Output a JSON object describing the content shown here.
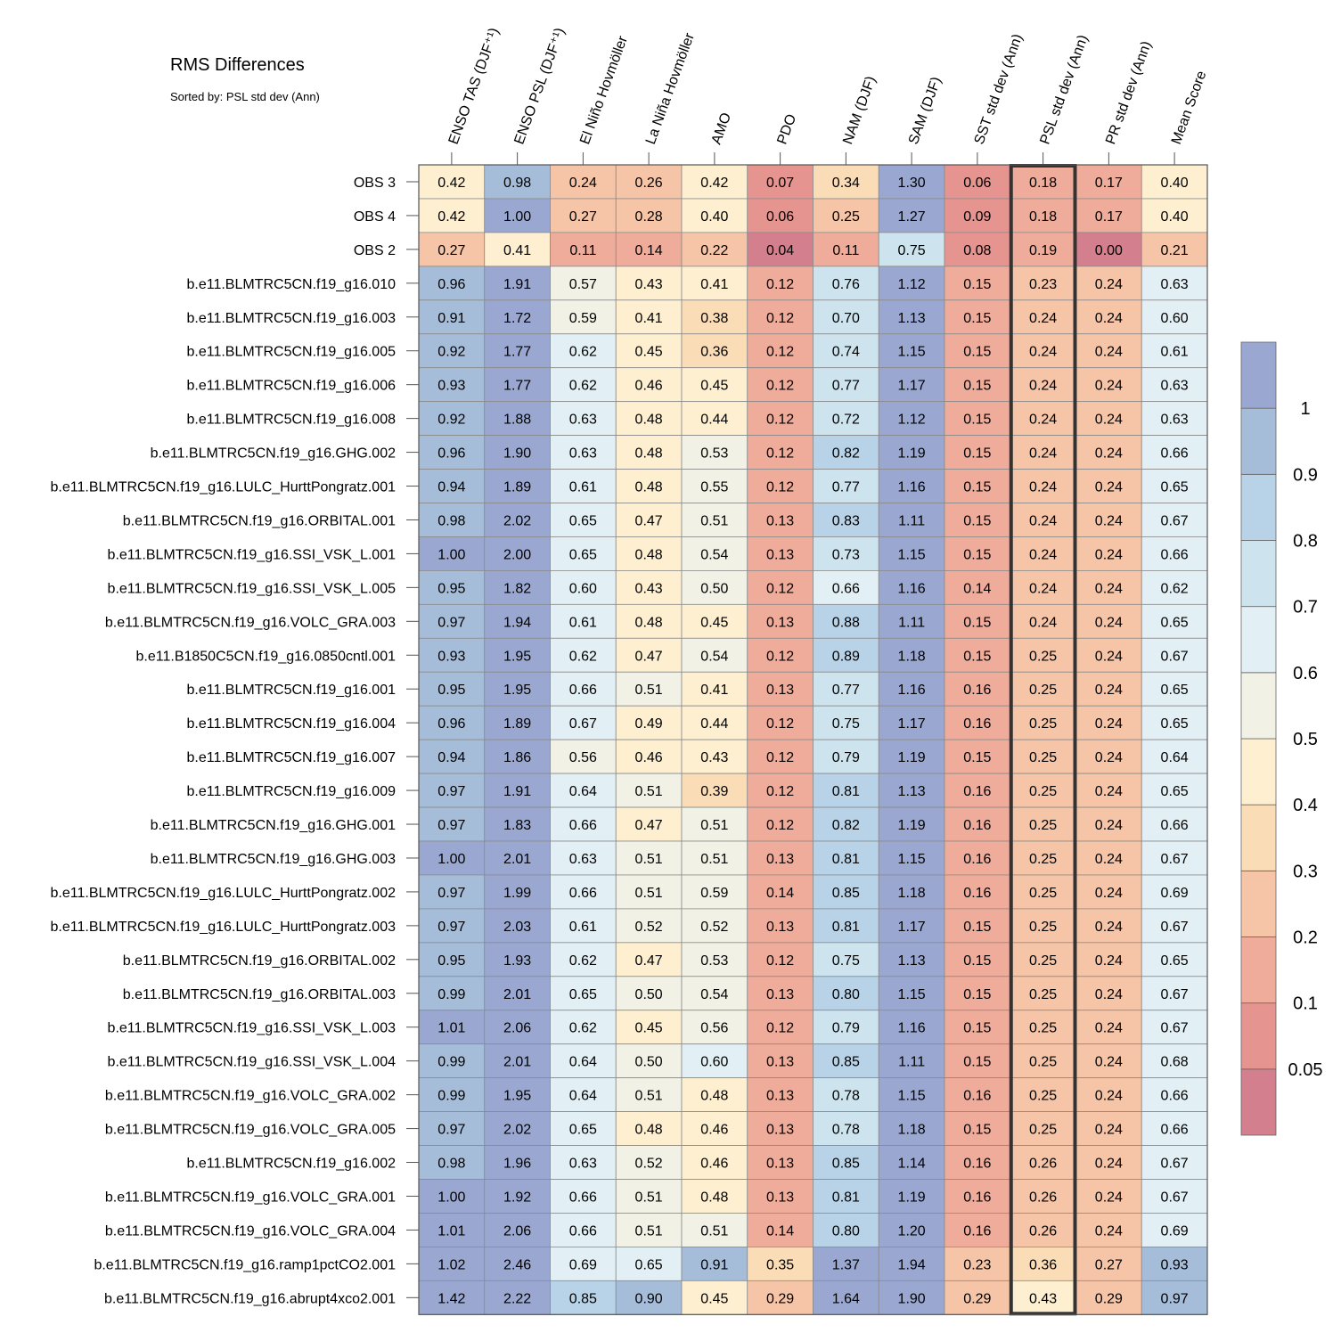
{
  "chart_data": {
    "type": "heatmap",
    "title": "RMS Differences",
    "subtitle": "Sorted by: PSL std dev (Ann)",
    "highlighted_column": "PSL std dev (Ann)",
    "columns": [
      "ENSO TAS (DJF⁺¹)",
      "ENSO PSL (DJF⁺¹)",
      "El Niño Hovmöller",
      "La Niña Hovmöller",
      "AMO",
      "PDO",
      "NAM (DJF)",
      "SAM (DJF)",
      "SST std dev (Ann)",
      "PSL std dev (Ann)",
      "PR std dev (Ann)",
      "Mean Score"
    ],
    "rows": [
      {
        "label": "OBS 3",
        "values": [
          "0.42",
          "0.98",
          "0.24",
          "0.26",
          "0.42",
          "0.07",
          "0.34",
          "1.30",
          "0.06",
          "0.18",
          "0.17",
          "0.40"
        ]
      },
      {
        "label": "OBS 4",
        "values": [
          "0.42",
          "1.00",
          "0.27",
          "0.28",
          "0.40",
          "0.06",
          "0.25",
          "1.27",
          "0.09",
          "0.18",
          "0.17",
          "0.40"
        ]
      },
      {
        "label": "OBS 2",
        "values": [
          "0.27",
          "0.41",
          "0.11",
          "0.14",
          "0.22",
          "0.04",
          "0.11",
          "0.75",
          "0.08",
          "0.19",
          "0.00",
          "0.21"
        ]
      },
      {
        "label": "b.e11.BLMTRC5CN.f19_g16.010",
        "values": [
          "0.96",
          "1.91",
          "0.57",
          "0.43",
          "0.41",
          "0.12",
          "0.76",
          "1.12",
          "0.15",
          "0.23",
          "0.24",
          "0.63"
        ]
      },
      {
        "label": "b.e11.BLMTRC5CN.f19_g16.003",
        "values": [
          "0.91",
          "1.72",
          "0.59",
          "0.41",
          "0.38",
          "0.12",
          "0.70",
          "1.13",
          "0.15",
          "0.24",
          "0.24",
          "0.60"
        ]
      },
      {
        "label": "b.e11.BLMTRC5CN.f19_g16.005",
        "values": [
          "0.92",
          "1.77",
          "0.62",
          "0.45",
          "0.36",
          "0.12",
          "0.74",
          "1.15",
          "0.15",
          "0.24",
          "0.24",
          "0.61"
        ]
      },
      {
        "label": "b.e11.BLMTRC5CN.f19_g16.006",
        "values": [
          "0.93",
          "1.77",
          "0.62",
          "0.46",
          "0.45",
          "0.12",
          "0.77",
          "1.17",
          "0.15",
          "0.24",
          "0.24",
          "0.63"
        ]
      },
      {
        "label": "b.e11.BLMTRC5CN.f19_g16.008",
        "values": [
          "0.92",
          "1.88",
          "0.63",
          "0.48",
          "0.44",
          "0.12",
          "0.72",
          "1.12",
          "0.15",
          "0.24",
          "0.24",
          "0.63"
        ]
      },
      {
        "label": "b.e11.BLMTRC5CN.f19_g16.GHG.002",
        "values": [
          "0.96",
          "1.90",
          "0.63",
          "0.48",
          "0.53",
          "0.12",
          "0.82",
          "1.19",
          "0.15",
          "0.24",
          "0.24",
          "0.66"
        ]
      },
      {
        "label": "b.e11.BLMTRC5CN.f19_g16.LULC_HurttPongratz.001",
        "values": [
          "0.94",
          "1.89",
          "0.61",
          "0.48",
          "0.55",
          "0.12",
          "0.77",
          "1.16",
          "0.15",
          "0.24",
          "0.24",
          "0.65"
        ]
      },
      {
        "label": "b.e11.BLMTRC5CN.f19_g16.ORBITAL.001",
        "values": [
          "0.98",
          "2.02",
          "0.65",
          "0.47",
          "0.51",
          "0.13",
          "0.83",
          "1.11",
          "0.15",
          "0.24",
          "0.24",
          "0.67"
        ]
      },
      {
        "label": "b.e11.BLMTRC5CN.f19_g16.SSI_VSK_L.001",
        "values": [
          "1.00",
          "2.00",
          "0.65",
          "0.48",
          "0.54",
          "0.13",
          "0.73",
          "1.15",
          "0.15",
          "0.24",
          "0.24",
          "0.66"
        ]
      },
      {
        "label": "b.e11.BLMTRC5CN.f19_g16.SSI_VSK_L.005",
        "values": [
          "0.95",
          "1.82",
          "0.60",
          "0.43",
          "0.50",
          "0.12",
          "0.66",
          "1.16",
          "0.14",
          "0.24",
          "0.24",
          "0.62"
        ]
      },
      {
        "label": "b.e11.BLMTRC5CN.f19_g16.VOLC_GRA.003",
        "values": [
          "0.97",
          "1.94",
          "0.61",
          "0.48",
          "0.45",
          "0.13",
          "0.88",
          "1.11",
          "0.15",
          "0.24",
          "0.24",
          "0.65"
        ]
      },
      {
        "label": "b.e11.B1850C5CN.f19_g16.0850cntl.001",
        "values": [
          "0.93",
          "1.95",
          "0.62",
          "0.47",
          "0.54",
          "0.12",
          "0.89",
          "1.18",
          "0.15",
          "0.25",
          "0.24",
          "0.67"
        ]
      },
      {
        "label": "b.e11.BLMTRC5CN.f19_g16.001",
        "values": [
          "0.95",
          "1.95",
          "0.66",
          "0.51",
          "0.41",
          "0.13",
          "0.77",
          "1.16",
          "0.16",
          "0.25",
          "0.24",
          "0.65"
        ]
      },
      {
        "label": "b.e11.BLMTRC5CN.f19_g16.004",
        "values": [
          "0.96",
          "1.89",
          "0.67",
          "0.49",
          "0.44",
          "0.12",
          "0.75",
          "1.17",
          "0.16",
          "0.25",
          "0.24",
          "0.65"
        ]
      },
      {
        "label": "b.e11.BLMTRC5CN.f19_g16.007",
        "values": [
          "0.94",
          "1.86",
          "0.56",
          "0.46",
          "0.43",
          "0.12",
          "0.79",
          "1.19",
          "0.15",
          "0.25",
          "0.24",
          "0.64"
        ]
      },
      {
        "label": "b.e11.BLMTRC5CN.f19_g16.009",
        "values": [
          "0.97",
          "1.91",
          "0.64",
          "0.51",
          "0.39",
          "0.12",
          "0.81",
          "1.13",
          "0.16",
          "0.25",
          "0.24",
          "0.65"
        ]
      },
      {
        "label": "b.e11.BLMTRC5CN.f19_g16.GHG.001",
        "values": [
          "0.97",
          "1.83",
          "0.66",
          "0.47",
          "0.51",
          "0.12",
          "0.82",
          "1.19",
          "0.16",
          "0.25",
          "0.24",
          "0.66"
        ]
      },
      {
        "label": "b.e11.BLMTRC5CN.f19_g16.GHG.003",
        "values": [
          "1.00",
          "2.01",
          "0.63",
          "0.51",
          "0.51",
          "0.13",
          "0.81",
          "1.15",
          "0.16",
          "0.25",
          "0.24",
          "0.67"
        ]
      },
      {
        "label": "b.e11.BLMTRC5CN.f19_g16.LULC_HurttPongratz.002",
        "values": [
          "0.97",
          "1.99",
          "0.66",
          "0.51",
          "0.59",
          "0.14",
          "0.85",
          "1.18",
          "0.16",
          "0.25",
          "0.24",
          "0.69"
        ]
      },
      {
        "label": "b.e11.BLMTRC5CN.f19_g16.LULC_HurttPongratz.003",
        "values": [
          "0.97",
          "2.03",
          "0.61",
          "0.52",
          "0.52",
          "0.13",
          "0.81",
          "1.17",
          "0.15",
          "0.25",
          "0.24",
          "0.67"
        ]
      },
      {
        "label": "b.e11.BLMTRC5CN.f19_g16.ORBITAL.002",
        "values": [
          "0.95",
          "1.93",
          "0.62",
          "0.47",
          "0.53",
          "0.12",
          "0.75",
          "1.13",
          "0.15",
          "0.25",
          "0.24",
          "0.65"
        ]
      },
      {
        "label": "b.e11.BLMTRC5CN.f19_g16.ORBITAL.003",
        "values": [
          "0.99",
          "2.01",
          "0.65",
          "0.50",
          "0.54",
          "0.13",
          "0.80",
          "1.15",
          "0.15",
          "0.25",
          "0.24",
          "0.67"
        ]
      },
      {
        "label": "b.e11.BLMTRC5CN.f19_g16.SSI_VSK_L.003",
        "values": [
          "1.01",
          "2.06",
          "0.62",
          "0.45",
          "0.56",
          "0.12",
          "0.79",
          "1.16",
          "0.15",
          "0.25",
          "0.24",
          "0.67"
        ]
      },
      {
        "label": "b.e11.BLMTRC5CN.f19_g16.SSI_VSK_L.004",
        "values": [
          "0.99",
          "2.01",
          "0.64",
          "0.50",
          "0.60",
          "0.13",
          "0.85",
          "1.11",
          "0.15",
          "0.25",
          "0.24",
          "0.68"
        ]
      },
      {
        "label": "b.e11.BLMTRC5CN.f19_g16.VOLC_GRA.002",
        "values": [
          "0.99",
          "1.95",
          "0.64",
          "0.51",
          "0.48",
          "0.13",
          "0.78",
          "1.15",
          "0.16",
          "0.25",
          "0.24",
          "0.66"
        ]
      },
      {
        "label": "b.e11.BLMTRC5CN.f19_g16.VOLC_GRA.005",
        "values": [
          "0.97",
          "2.02",
          "0.65",
          "0.48",
          "0.46",
          "0.13",
          "0.78",
          "1.18",
          "0.15",
          "0.25",
          "0.24",
          "0.66"
        ]
      },
      {
        "label": "b.e11.BLMTRC5CN.f19_g16.002",
        "values": [
          "0.98",
          "1.96",
          "0.63",
          "0.52",
          "0.46",
          "0.13",
          "0.85",
          "1.14",
          "0.16",
          "0.26",
          "0.24",
          "0.67"
        ]
      },
      {
        "label": "b.e11.BLMTRC5CN.f19_g16.VOLC_GRA.001",
        "values": [
          "1.00",
          "1.92",
          "0.66",
          "0.51",
          "0.48",
          "0.13",
          "0.81",
          "1.19",
          "0.16",
          "0.26",
          "0.24",
          "0.67"
        ]
      },
      {
        "label": "b.e11.BLMTRC5CN.f19_g16.VOLC_GRA.004",
        "values": [
          "1.01",
          "2.06",
          "0.66",
          "0.51",
          "0.51",
          "0.14",
          "0.80",
          "1.20",
          "0.16",
          "0.26",
          "0.24",
          "0.69"
        ]
      },
      {
        "label": "b.e11.BLMTRC5CN.f19_g16.ramp1pctCO2.001",
        "values": [
          "1.02",
          "2.46",
          "0.69",
          "0.65",
          "0.91",
          "0.35",
          "1.37",
          "1.94",
          "0.23",
          "0.36",
          "0.27",
          "0.93"
        ]
      },
      {
        "label": "b.e11.BLMTRC5CN.f19_g16.abrupt4xco2.001",
        "values": [
          "1.42",
          "2.22",
          "0.85",
          "0.90",
          "0.45",
          "0.29",
          "1.64",
          "1.90",
          "0.29",
          "0.43",
          "0.29",
          "0.97"
        ]
      }
    ],
    "colorbar": {
      "levels": [
        0.05,
        0.1,
        0.2,
        0.3,
        0.4,
        0.5,
        0.6,
        0.7,
        0.8,
        0.9,
        1
      ],
      "labels": [
        "0.05",
        "0.1",
        "0.2",
        "0.3",
        "0.4",
        "0.5",
        "0.6",
        "0.7",
        "0.8",
        "0.9",
        "1"
      ],
      "colors": [
        "#d37f8e",
        "#e5948f",
        "#efac9a",
        "#f6c5a8",
        "#fadcb6",
        "#fdefcf",
        "#f2f1e6",
        "#e2eff4",
        "#cde4ef",
        "#b8d3e7",
        "#a6bdda",
        "#9aa8d1"
      ]
    }
  }
}
